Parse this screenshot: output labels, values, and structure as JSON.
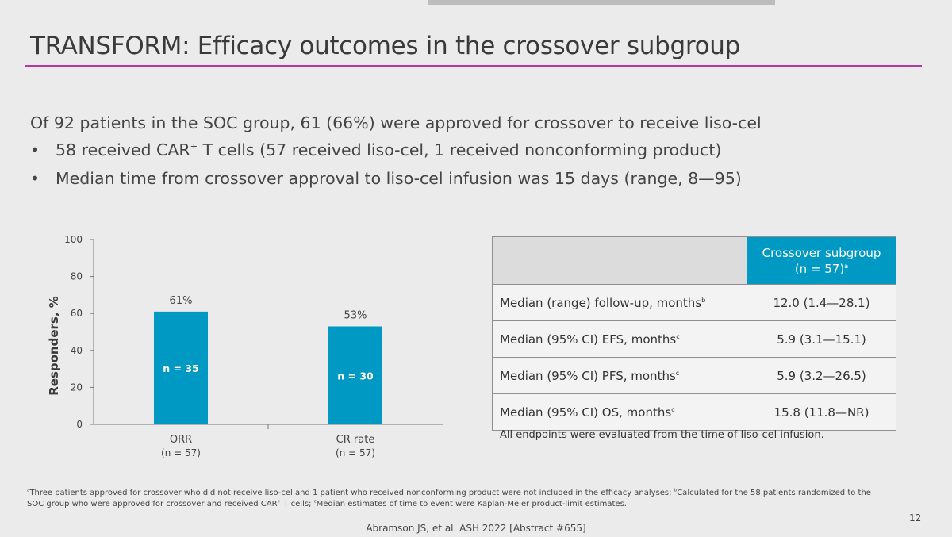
{
  "slide": {
    "title": "TRANSFORM: Efficacy outcomes in the crossover subgroup",
    "intro": "Of 92 patients in the SOC group, 61 (66%) were approved for crossover to receive liso-cel",
    "bullets": [
      {
        "marker": "•",
        "pre": "58 received CAR",
        "sup": "+",
        "post": " T cells (57 received liso-cel, 1 received nonconforming product)"
      },
      {
        "marker": "•",
        "pre": "Median time from crossover approval to liso-cel infusion was 15 days (range, 8—95)",
        "sup": "",
        "post": ""
      }
    ],
    "page_number": "12",
    "citation": "Abramson JS, et al. ASH 2022 [Abstract #655]",
    "footnote": {
      "a": "a",
      "a_text": "Three patients approved for crossover who did not receive liso-cel and 1 patient who received nonconforming product were not included in the efficacy analyses; ",
      "b": "b",
      "b_text": "Calculated for the 58 patients randomized to the SOC group who were approved for crossover and received CAR",
      "b_sup": "+",
      "b_text2": " T cells; ",
      "c": "c",
      "c_text": "Median estimates of time to event were Kaplan-Meier product-limit estimates."
    }
  },
  "chart_data": {
    "type": "bar",
    "ylabel": "Responders, %",
    "ylim": [
      0,
      100
    ],
    "yticks": [
      0,
      20,
      40,
      60,
      80,
      100
    ],
    "grid": false,
    "bar_color": "#0099c4",
    "categories": [
      {
        "label": "ORR",
        "sublabel": "(n = 57)"
      },
      {
        "label": "CR rate",
        "sublabel": "(n = 57)"
      }
    ],
    "values": [
      61,
      53
    ],
    "value_labels": [
      "61%",
      "53%"
    ],
    "bar_labels": [
      "n = 35",
      "n = 30"
    ]
  },
  "table": {
    "header": {
      "line1": "Crossover subgroup",
      "line2": "(n = 57)",
      "sup": "a"
    },
    "rows": [
      {
        "label": "Median (range) follow-up, months",
        "sup": "b",
        "value": "12.0 (1.4—28.1)"
      },
      {
        "label": "Median (95% CI) EFS, months",
        "sup": "c",
        "value": "5.9 (3.1—15.1)"
      },
      {
        "label": "Median (95% CI) PFS, months",
        "sup": "c",
        "value": "5.9 (3.2—26.5)"
      },
      {
        "label": "Median (95% CI) OS, months",
        "sup": "c",
        "value": "15.8 (11.8—NR)"
      }
    ],
    "note": "All endpoints were evaluated from the time of liso-cel infusion."
  }
}
